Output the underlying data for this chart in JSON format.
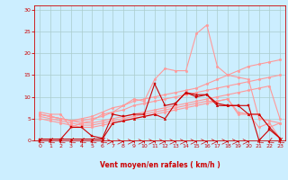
{
  "title": "",
  "xlabel": "Vent moyen/en rafales ( km/h )",
  "bg_color": "#cceeff",
  "grid_color": "#aacccc",
  "text_color": "#cc0000",
  "xlim": [
    -0.5,
    23.5
  ],
  "ylim": [
    0,
    31
  ],
  "yticks": [
    0,
    5,
    10,
    15,
    20,
    25,
    30
  ],
  "xticks": [
    0,
    1,
    2,
    3,
    4,
    5,
    6,
    7,
    8,
    9,
    10,
    11,
    12,
    13,
    14,
    15,
    16,
    17,
    18,
    19,
    20,
    21,
    22,
    23
  ],
  "lines": [
    {
      "x": [
        0,
        1,
        2,
        3,
        4,
        5,
        6,
        7,
        8,
        9,
        10,
        11,
        12,
        13,
        14,
        15,
        16,
        17,
        18,
        19,
        20,
        21,
        22,
        23
      ],
      "y": [
        0.3,
        0.3,
        0.3,
        3,
        3,
        1,
        0.5,
        6,
        5.5,
        6,
        6,
        13,
        8,
        8.5,
        11,
        10,
        10.5,
        8.5,
        8,
        8,
        8,
        0,
        2.5,
        0.5
      ],
      "color": "#cc0000",
      "lw": 0.8,
      "marker": "s",
      "ms": 1.8,
      "alpha": 1.0,
      "zorder": 5
    },
    {
      "x": [
        0,
        1,
        2,
        3,
        4,
        5,
        6,
        7,
        8,
        9,
        10,
        11,
        12,
        13,
        14,
        15,
        16,
        17,
        18,
        19,
        20,
        21,
        22,
        23
      ],
      "y": [
        0.3,
        0.3,
        0.3,
        0.3,
        0.3,
        0.3,
        0.3,
        4,
        4.5,
        5,
        5.5,
        6,
        5,
        8.5,
        11,
        10.5,
        10.5,
        8,
        8,
        8,
        6,
        6,
        3,
        0.5
      ],
      "color": "#cc0000",
      "lw": 0.8,
      "marker": "^",
      "ms": 1.8,
      "alpha": 1.0,
      "zorder": 5
    },
    {
      "x": [
        0,
        1,
        2,
        3,
        4,
        5,
        6,
        7,
        8,
        9,
        10,
        11,
        12,
        13,
        14,
        15,
        16,
        17,
        18,
        19,
        20,
        21,
        22,
        23
      ],
      "y": [
        6.5,
        6,
        6,
        3,
        4,
        4.5,
        6,
        6.5,
        8,
        9.5,
        9,
        14,
        16.5,
        16,
        16,
        24.5,
        26.5,
        17,
        15,
        14.5,
        14,
        5,
        4.5,
        4
      ],
      "color": "#ff9999",
      "lw": 0.8,
      "marker": "o",
      "ms": 1.8,
      "alpha": 1.0,
      "zorder": 3
    },
    {
      "x": [
        0,
        1,
        2,
        3,
        4,
        5,
        6,
        7,
        8,
        9,
        10,
        11,
        12,
        13,
        14,
        15,
        16,
        17,
        18,
        19,
        20,
        21,
        22,
        23
      ],
      "y": [
        6,
        5.5,
        5,
        4.5,
        5,
        5.5,
        6.5,
        7.5,
        8,
        9,
        9.5,
        10,
        10.5,
        11,
        11.5,
        12,
        13,
        14,
        15,
        16,
        17,
        17.5,
        18,
        18.5
      ],
      "color": "#ff9999",
      "lw": 0.8,
      "marker": "o",
      "ms": 1.8,
      "alpha": 1.0,
      "zorder": 3
    },
    {
      "x": [
        0,
        1,
        2,
        3,
        4,
        5,
        6,
        7,
        8,
        9,
        10,
        11,
        12,
        13,
        14,
        15,
        16,
        17,
        18,
        19,
        20,
        21,
        22,
        23
      ],
      "y": [
        6,
        5.5,
        5,
        4.5,
        4.5,
        5,
        5.5,
        6.5,
        7,
        8,
        8.5,
        9,
        9.5,
        10,
        10.5,
        11,
        11.5,
        12,
        12.5,
        13,
        13.5,
        14,
        14.5,
        15
      ],
      "color": "#ff9999",
      "lw": 0.8,
      "marker": "o",
      "ms": 1.8,
      "alpha": 1.0,
      "zorder": 3
    },
    {
      "x": [
        0,
        1,
        2,
        3,
        4,
        5,
        6,
        7,
        8,
        9,
        10,
        11,
        12,
        13,
        14,
        15,
        16,
        17,
        18,
        19,
        20,
        21,
        22,
        23
      ],
      "y": [
        6,
        5.5,
        5,
        4.5,
        4,
        4,
        4.5,
        5,
        5.5,
        6,
        6.5,
        7,
        7.5,
        8,
        8.5,
        9,
        9.5,
        10,
        10.5,
        11,
        11.5,
        12,
        12.5,
        5
      ],
      "color": "#ff9999",
      "lw": 0.8,
      "marker": "o",
      "ms": 1.8,
      "alpha": 1.0,
      "zorder": 3
    },
    {
      "x": [
        0,
        1,
        2,
        3,
        4,
        5,
        6,
        7,
        8,
        9,
        10,
        11,
        12,
        13,
        14,
        15,
        16,
        17,
        18,
        19,
        20,
        21,
        22,
        23
      ],
      "y": [
        5.5,
        5,
        4.5,
        4,
        3.5,
        3.5,
        4,
        4.5,
        5,
        5.5,
        6,
        6.5,
        7,
        7.5,
        8,
        8.5,
        9,
        9,
        9.5,
        6.5,
        6,
        3,
        4,
        0.5
      ],
      "color": "#ff9999",
      "lw": 0.8,
      "marker": "o",
      "ms": 1.8,
      "alpha": 1.0,
      "zorder": 3
    },
    {
      "x": [
        0,
        1,
        2,
        3,
        4,
        5,
        6,
        7,
        8,
        9,
        10,
        11,
        12,
        13,
        14,
        15,
        16,
        17,
        18,
        19,
        20,
        21,
        22,
        23
      ],
      "y": [
        5,
        4.5,
        4,
        3.5,
        3,
        3,
        3.5,
        4,
        4.5,
        5,
        5.5,
        6,
        6.5,
        7,
        7.5,
        8,
        8.5,
        9,
        9.5,
        6,
        6,
        6,
        3,
        4
      ],
      "color": "#ff9999",
      "lw": 0.8,
      "marker": "o",
      "ms": 1.8,
      "alpha": 1.0,
      "zorder": 3
    }
  ],
  "wind_arrows_x": [
    0,
    1,
    2,
    3,
    4,
    5,
    6,
    7,
    8,
    9,
    10,
    11,
    12,
    13,
    14,
    15,
    16,
    17,
    18,
    19,
    20,
    21,
    22,
    23
  ],
  "wind_arrows_angles": [
    225,
    225,
    225,
    225,
    225,
    225,
    225,
    90,
    90,
    90,
    90,
    90,
    90,
    90,
    90,
    90,
    90,
    90,
    90,
    90,
    90,
    225,
    225,
    225
  ]
}
